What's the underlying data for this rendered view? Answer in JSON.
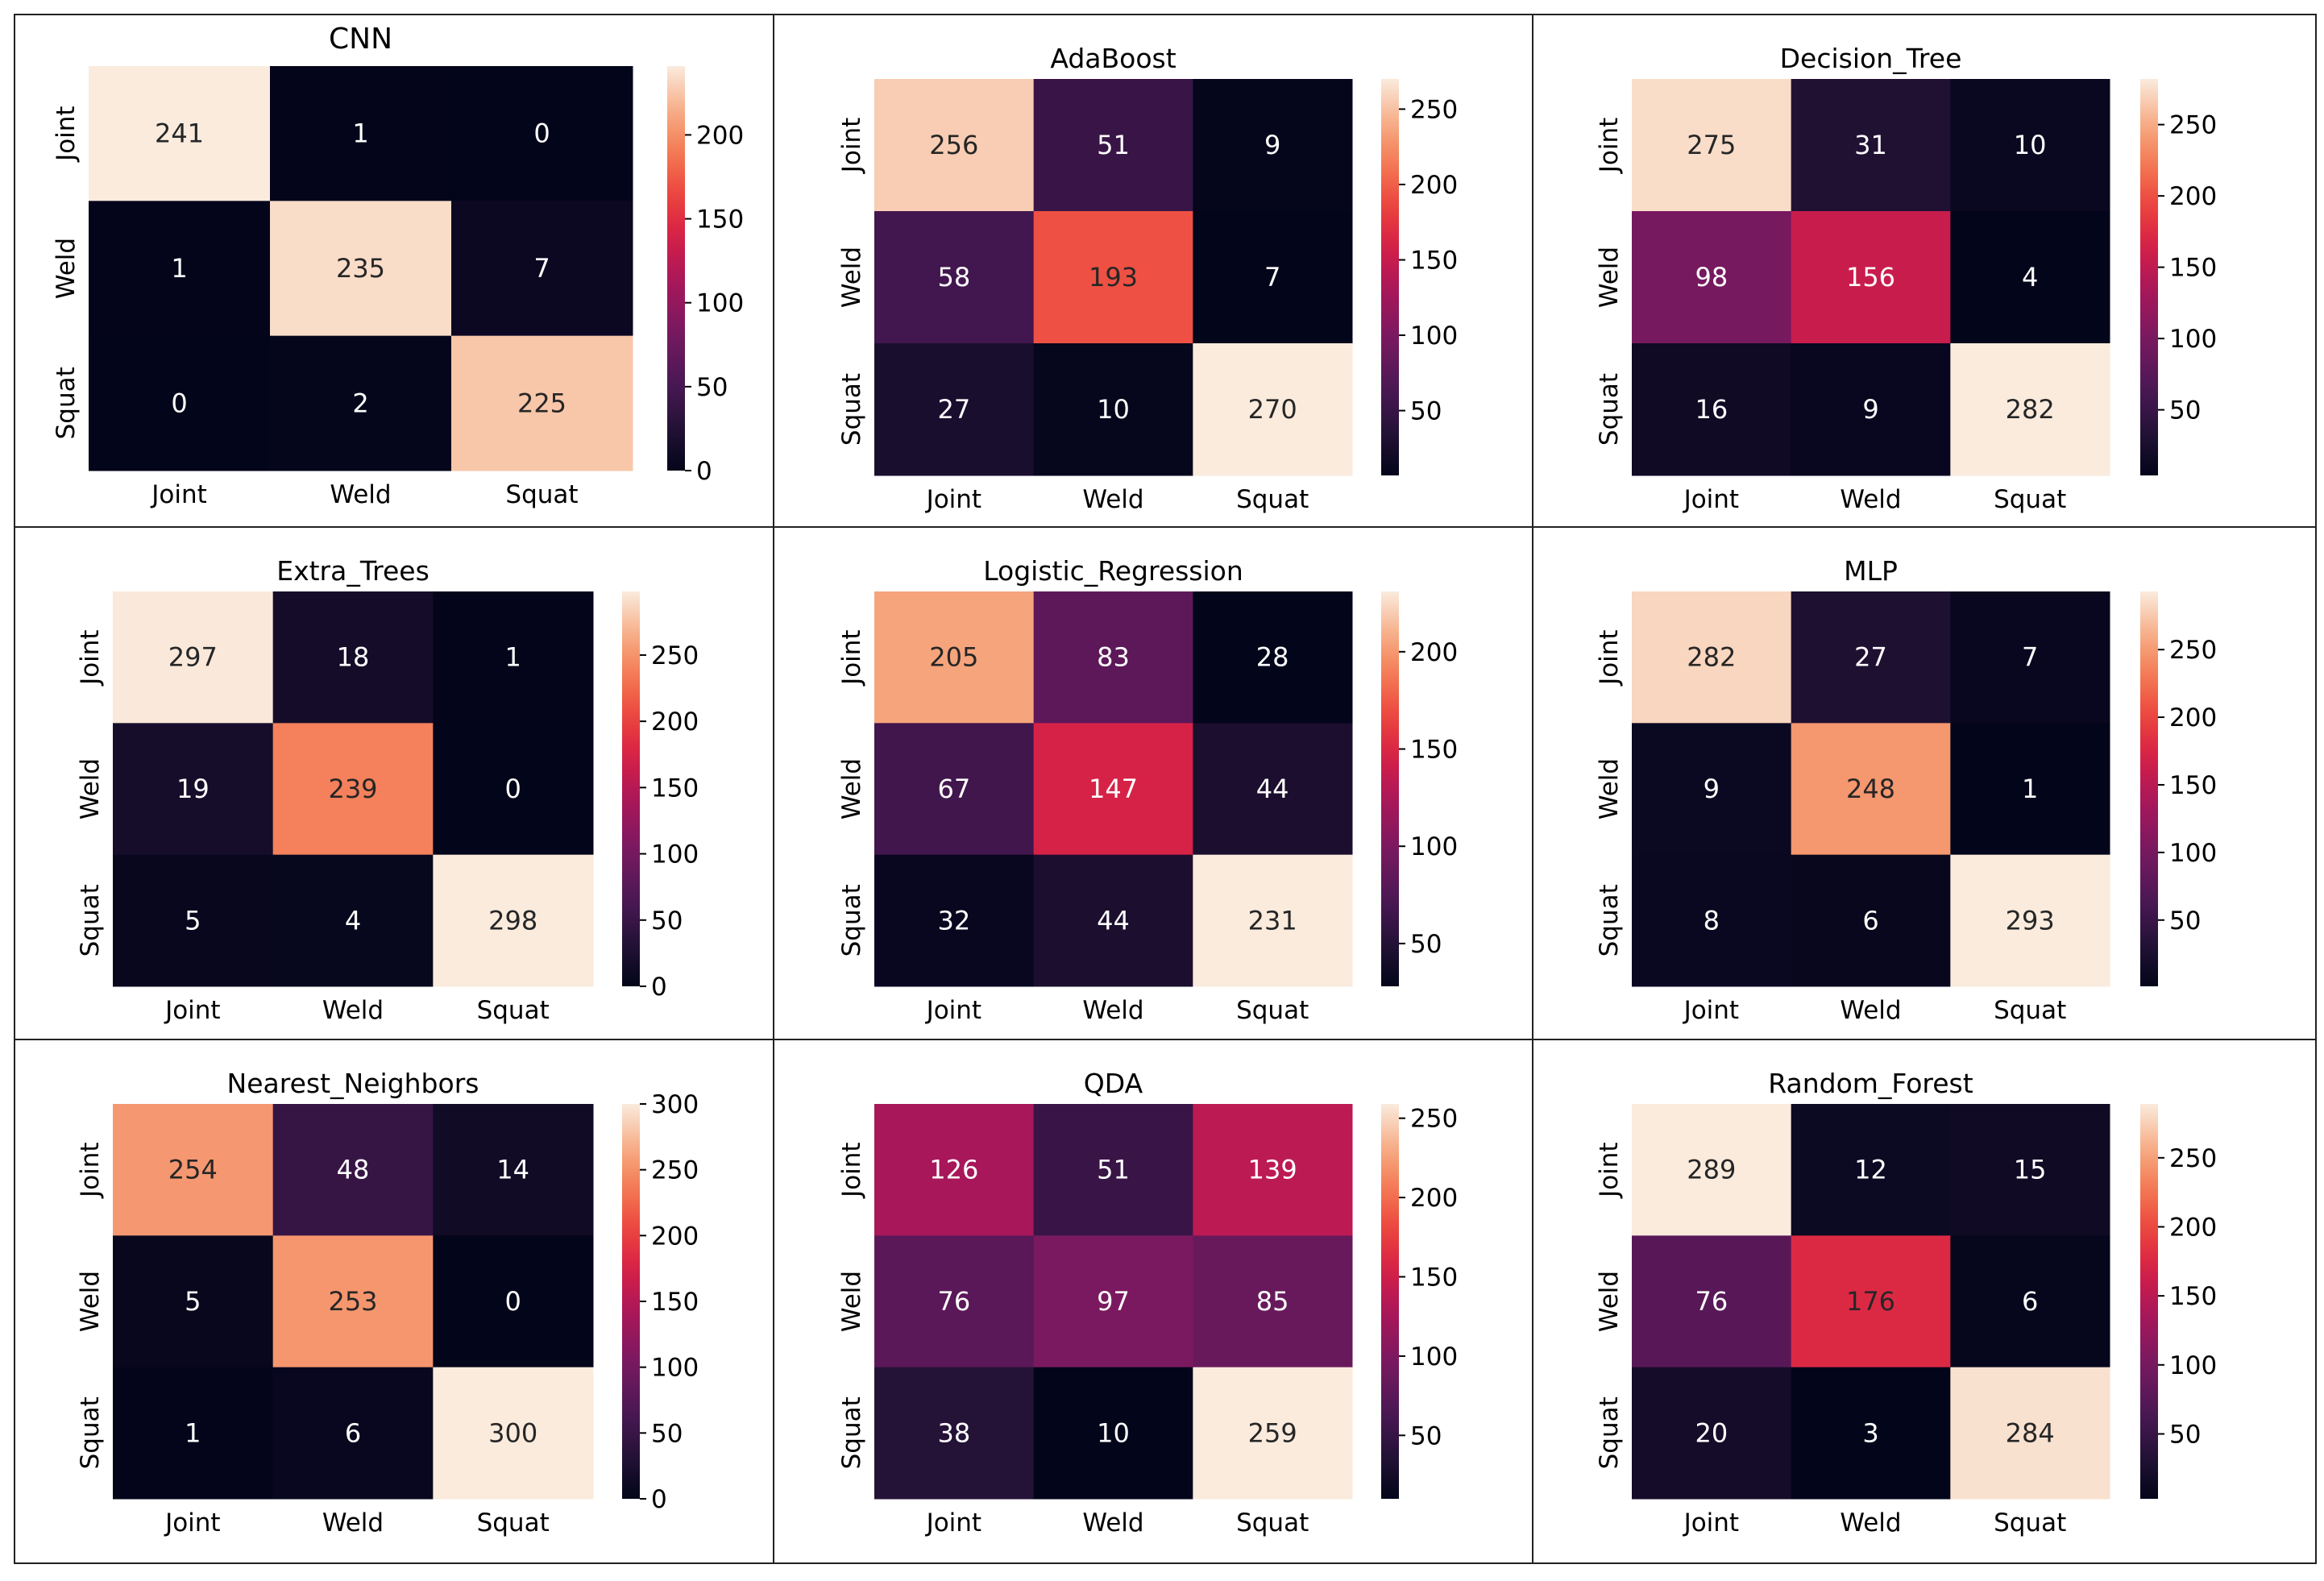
{
  "chart_data": [
    {
      "type": "heatmap",
      "title": "CNN",
      "x": [
        "Joint",
        "Weld",
        "Squat"
      ],
      "y": [
        "Joint",
        "Weld",
        "Squat"
      ],
      "values": [
        [
          241,
          1,
          0
        ],
        [
          1,
          235,
          7
        ],
        [
          0,
          2,
          225
        ]
      ],
      "colorbar": {
        "min": 0,
        "max": 241,
        "ticks": [
          0,
          50,
          100,
          150,
          200
        ]
      }
    },
    {
      "type": "heatmap",
      "title": "AdaBoost",
      "x": [
        "Joint",
        "Weld",
        "Squat"
      ],
      "y": [
        "Joint",
        "Weld",
        "Squat"
      ],
      "values": [
        [
          256,
          51,
          9
        ],
        [
          58,
          193,
          7
        ],
        [
          27,
          10,
          270
        ]
      ],
      "colorbar": {
        "min": 7,
        "max": 270,
        "ticks": [
          50,
          100,
          150,
          200,
          250
        ]
      }
    },
    {
      "type": "heatmap",
      "title": "Decision_Tree",
      "x": [
        "Joint",
        "Weld",
        "Squat"
      ],
      "y": [
        "Joint",
        "Weld",
        "Squat"
      ],
      "values": [
        [
          275,
          31,
          10
        ],
        [
          98,
          156,
          4
        ],
        [
          16,
          9,
          282
        ]
      ],
      "colorbar": {
        "min": 4,
        "max": 282,
        "ticks": [
          50,
          100,
          150,
          200,
          250
        ]
      }
    },
    {
      "type": "heatmap",
      "title": "Extra_Trees",
      "x": [
        "Joint",
        "Weld",
        "Squat"
      ],
      "y": [
        "Joint",
        "Weld",
        "Squat"
      ],
      "values": [
        [
          297,
          18,
          1
        ],
        [
          19,
          239,
          0
        ],
        [
          5,
          4,
          298
        ]
      ],
      "colorbar": {
        "min": 0,
        "max": 298,
        "ticks": [
          0,
          50,
          100,
          150,
          200,
          250
        ]
      }
    },
    {
      "type": "heatmap",
      "title": "Logistic_Regression",
      "x": [
        "Joint",
        "Weld",
        "Squat"
      ],
      "y": [
        "Joint",
        "Weld",
        "Squat"
      ],
      "values": [
        [
          205,
          83,
          28
        ],
        [
          67,
          147,
          44
        ],
        [
          32,
          44,
          231
        ]
      ],
      "colorbar": {
        "min": 28,
        "max": 231,
        "ticks": [
          50,
          100,
          150,
          200
        ]
      }
    },
    {
      "type": "heatmap",
      "title": "MLP",
      "x": [
        "Joint",
        "Weld",
        "Squat"
      ],
      "y": [
        "Joint",
        "Weld",
        "Squat"
      ],
      "values": [
        [
          282,
          27,
          7
        ],
        [
          9,
          248,
          1
        ],
        [
          8,
          6,
          293
        ]
      ],
      "colorbar": {
        "min": 1,
        "max": 293,
        "ticks": [
          50,
          100,
          150,
          200,
          250
        ]
      }
    },
    {
      "type": "heatmap",
      "title": "Nearest_Neighbors",
      "x": [
        "Joint",
        "Weld",
        "Squat"
      ],
      "y": [
        "Joint",
        "Weld",
        "Squat"
      ],
      "values": [
        [
          254,
          48,
          14
        ],
        [
          5,
          253,
          0
        ],
        [
          1,
          6,
          300
        ]
      ],
      "colorbar": {
        "min": 0,
        "max": 300,
        "ticks": [
          0,
          50,
          100,
          150,
          200,
          250,
          300
        ]
      }
    },
    {
      "type": "heatmap",
      "title": "QDA",
      "x": [
        "Joint",
        "Weld",
        "Squat"
      ],
      "y": [
        "Joint",
        "Weld",
        "Squat"
      ],
      "values": [
        [
          126,
          51,
          139
        ],
        [
          76,
          97,
          85
        ],
        [
          38,
          10,
          259
        ]
      ],
      "colorbar": {
        "min": 10,
        "max": 259,
        "ticks": [
          50,
          100,
          150,
          200,
          250
        ]
      }
    },
    {
      "type": "heatmap",
      "title": "Random_Forest",
      "x": [
        "Joint",
        "Weld",
        "Squat"
      ],
      "y": [
        "Joint",
        "Weld",
        "Squat"
      ],
      "values": [
        [
          289,
          12,
          15
        ],
        [
          76,
          176,
          6
        ],
        [
          20,
          3,
          284
        ]
      ],
      "colorbar": {
        "min": 3,
        "max": 289,
        "ticks": [
          50,
          100,
          150,
          200,
          250
        ]
      }
    }
  ]
}
